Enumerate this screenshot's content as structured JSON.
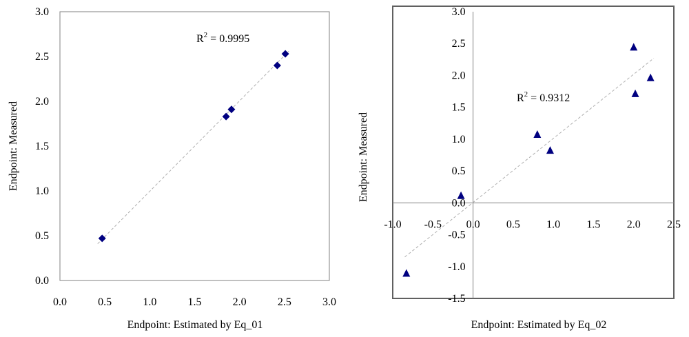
{
  "chart_data": [
    {
      "type": "scatter",
      "marker": "diamond",
      "xlabel": "Endpoint: Estimated by Eq_01",
      "ylabel": "Endpoint: Measured",
      "xlim": [
        0,
        3
      ],
      "ylim": [
        0,
        3
      ],
      "x_ticks": [
        "0.0",
        "0.5",
        "1.0",
        "1.5",
        "2.0",
        "2.5",
        "3.0"
      ],
      "y_ticks": [
        "0.0",
        "0.5",
        "1.0",
        "1.5",
        "2.0",
        "2.5",
        "3.0"
      ],
      "points": [
        {
          "x": 0.47,
          "y": 0.47
        },
        {
          "x": 1.85,
          "y": 1.83
        },
        {
          "x": 1.91,
          "y": 1.91
        },
        {
          "x": 2.42,
          "y": 2.4
        },
        {
          "x": 2.51,
          "y": 2.53
        }
      ],
      "trendline": {
        "x": [
          0.42,
          2.55
        ],
        "y": [
          0.41,
          2.56
        ]
      },
      "annotation": {
        "r2_base": "R",
        "r2_exp": "2",
        "r2_value": " = 0.9995"
      },
      "colors": {
        "marker": "#000080",
        "trendline": "#b0b0b0"
      }
    },
    {
      "type": "scatter",
      "marker": "triangle",
      "xlabel": "Endpoint: Estimated by Eq_02",
      "ylabel": "Endpoint: Measured",
      "xlim": [
        -1,
        2.5
      ],
      "ylim": [
        -1.5,
        3
      ],
      "x_ticks": [
        "-1.0",
        "-0.5",
        "0.0",
        "0.5",
        "1.0",
        "1.5",
        "2.0",
        "2.5"
      ],
      "y_ticks": [
        "-1.5",
        "-1.0",
        "-0.5",
        "0.0",
        "0.5",
        "1.0",
        "1.5",
        "2.0",
        "2.5",
        "3.0"
      ],
      "points": [
        {
          "x": -0.83,
          "y": -1.1
        },
        {
          "x": -0.15,
          "y": 0.12
        },
        {
          "x": 0.8,
          "y": 1.08
        },
        {
          "x": 0.96,
          "y": 0.83
        },
        {
          "x": 2.0,
          "y": 2.45
        },
        {
          "x": 2.02,
          "y": 1.72
        },
        {
          "x": 2.21,
          "y": 1.97
        }
      ],
      "trendline": {
        "x": [
          -0.85,
          2.25
        ],
        "y": [
          -0.85,
          2.27
        ]
      },
      "annotation": {
        "r2_base": "R",
        "r2_exp": "2",
        "r2_value": " = 0.9312"
      },
      "colors": {
        "marker": "#000080",
        "trendline": "#b0b0b0"
      }
    }
  ]
}
